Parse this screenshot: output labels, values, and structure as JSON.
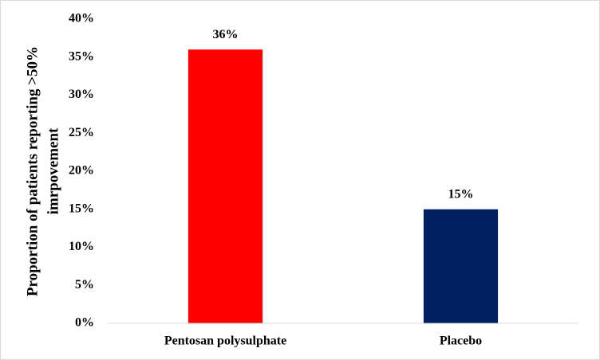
{
  "chart_data": {
    "type": "bar",
    "y_label": [
      "Proportion of patients reporting >50%",
      "imrpovement"
    ],
    "categories": [
      "Pentosan polysulphate",
      "Placebo"
    ],
    "values": [
      36,
      15
    ],
    "value_labels": [
      "36%",
      "15%"
    ],
    "colors": [
      "#ff0000",
      "#002060"
    ],
    "ylim": [
      0,
      40
    ],
    "yticks": [
      {
        "value": 0,
        "label": "0%"
      },
      {
        "value": 5,
        "label": "5%"
      },
      {
        "value": 10,
        "label": "10%"
      },
      {
        "value": 15,
        "label": "15%"
      },
      {
        "value": 20,
        "label": "20%"
      },
      {
        "value": 25,
        "label": "25%"
      },
      {
        "value": 30,
        "label": "30%"
      },
      {
        "value": 35,
        "label": "35%"
      },
      {
        "value": 40,
        "label": "40%"
      }
    ],
    "grid": false
  }
}
